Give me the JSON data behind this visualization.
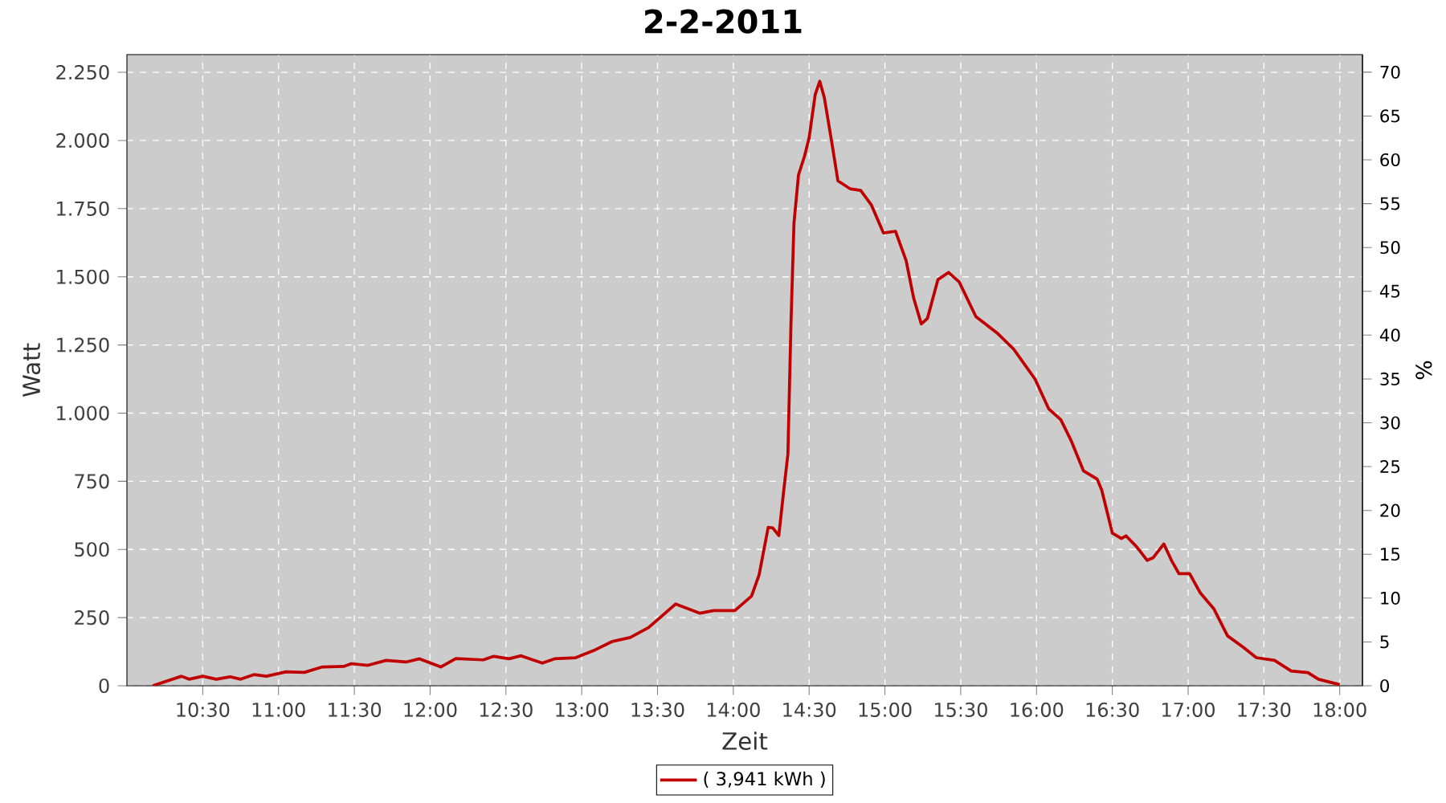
{
  "chart_data": {
    "type": "line",
    "title": "2-2-2011",
    "xlabel": "Zeit",
    "ylabel": "Watt",
    "y2label": "%",
    "x": [
      10.17,
      10.36,
      10.41,
      10.5,
      10.59,
      10.68,
      10.75,
      10.84,
      10.92,
      11.05,
      11.17,
      11.29,
      11.43,
      11.48,
      11.59,
      11.71,
      11.84,
      11.93,
      12.07,
      12.17,
      12.35,
      12.42,
      12.52,
      12.6,
      12.74,
      12.82,
      12.96,
      13.09,
      13.2,
      13.32,
      13.44,
      13.62,
      13.78,
      13.87,
      14.01,
      14.12,
      14.17,
      14.23,
      14.26,
      14.3,
      14.33,
      14.36,
      14.38,
      14.4,
      14.43,
      14.47,
      14.5,
      14.54,
      14.57,
      14.6,
      14.65,
      14.69,
      14.77,
      14.84,
      14.91,
      14.99,
      15.07,
      15.14,
      15.19,
      15.24,
      15.28,
      15.35,
      15.42,
      15.49,
      15.6,
      15.74,
      15.85,
      15.99,
      16.08,
      16.16,
      16.23,
      16.31,
      16.4,
      16.43,
      16.5,
      16.56,
      16.59,
      16.66,
      16.73,
      16.77,
      16.84,
      16.89,
      16.94,
      17.01,
      17.08,
      17.17,
      17.26,
      17.36,
      17.45,
      17.57,
      17.68,
      17.79,
      17.86,
      18.0
    ],
    "series": [
      {
        "name": "( 3,941 kWh )",
        "color": "#c00000",
        "values": [
          0,
          35,
          24,
          35,
          24,
          33,
          24,
          41,
          35,
          51,
          49,
          69,
          71,
          81,
          75,
          93,
          87,
          99,
          69,
          100,
          95,
          108,
          99,
          110,
          83,
          99,
          103,
          132,
          162,
          177,
          213,
          300,
          266,
          276,
          276,
          329,
          407,
          581,
          579,
          551,
          703,
          850,
          1323,
          1697,
          1874,
          1943,
          2010,
          2168,
          2217,
          2158,
          1991,
          1852,
          1823,
          1817,
          1764,
          1661,
          1667,
          1559,
          1421,
          1327,
          1347,
          1490,
          1516,
          1481,
          1354,
          1294,
          1234,
          1125,
          1016,
          976,
          897,
          788,
          758,
          718,
          560,
          540,
          550,
          510,
          460,
          470,
          520,
          460,
          411,
          411,
          341,
          282,
          183,
          143,
          103,
          93,
          54,
          48,
          24,
          4
        ]
      }
    ],
    "xlim": [
      10.0,
      18.15
    ],
    "xticks": [
      {
        "value": 10.5,
        "label": "10:30"
      },
      {
        "value": 11.0,
        "label": "11:00"
      },
      {
        "value": 11.5,
        "label": "11:30"
      },
      {
        "value": 12.0,
        "label": "12:00"
      },
      {
        "value": 12.5,
        "label": "12:30"
      },
      {
        "value": 13.0,
        "label": "13:00"
      },
      {
        "value": 13.5,
        "label": "13:30"
      },
      {
        "value": 14.0,
        "label": "14:00"
      },
      {
        "value": 14.5,
        "label": "14:30"
      },
      {
        "value": 15.0,
        "label": "15:00"
      },
      {
        "value": 15.5,
        "label": "15:30"
      },
      {
        "value": 16.0,
        "label": "16:00"
      },
      {
        "value": 16.5,
        "label": "16:30"
      },
      {
        "value": 17.0,
        "label": "17:00"
      },
      {
        "value": 17.5,
        "label": "17:30"
      },
      {
        "value": 18.0,
        "label": "18:00"
      }
    ],
    "ylim": [
      0,
      2315
    ],
    "yticks": [
      0,
      250,
      500,
      750,
      {
        "value": 1000,
        "label": "1.000"
      },
      {
        "value": 1250,
        "label": "1.250"
      },
      {
        "value": 1500,
        "label": "1.500"
      },
      {
        "value": 1750,
        "label": "1.750"
      },
      {
        "value": 2000,
        "label": "2.000"
      },
      {
        "value": 2250,
        "label": "2.250"
      }
    ],
    "y2lim": [
      0,
      72.0
    ],
    "y2ticks": [
      0,
      5,
      10,
      15,
      20,
      25,
      30,
      35,
      40,
      45,
      50,
      55,
      60,
      65,
      70
    ],
    "grid": true,
    "legend": "bottom",
    "marker": "none",
    "line_style": "solid"
  }
}
